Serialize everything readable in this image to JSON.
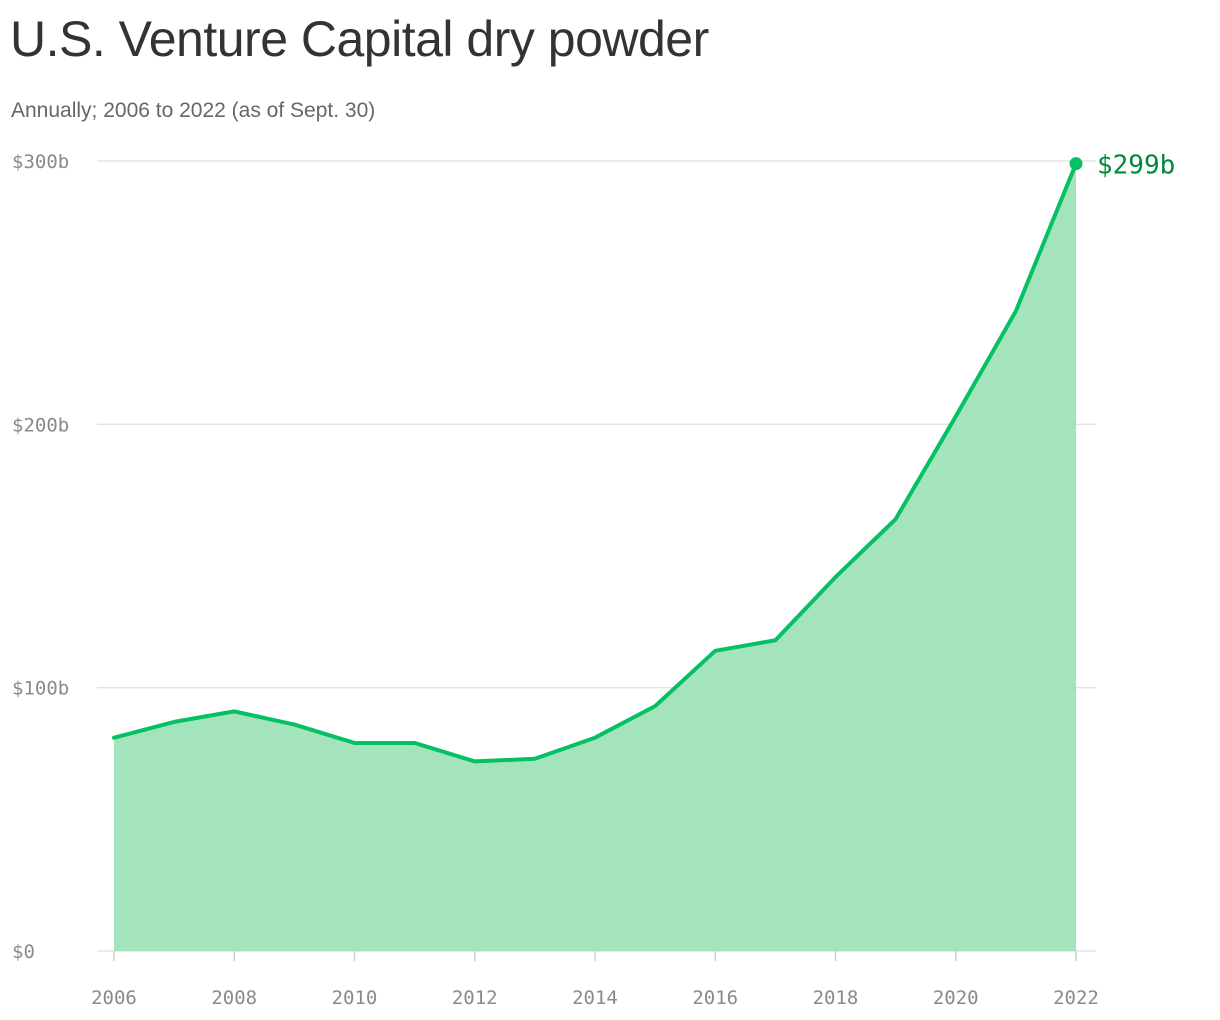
{
  "header": {
    "title": "U.S. Venture Capital dry powder",
    "subtitle": "Annually; 2006 to 2022 (as of Sept. 30)"
  },
  "colors": {
    "line": "#06c163",
    "area": "#a4e4bc",
    "end_label": "#00893d",
    "grid": "#e3e3e3",
    "tick_text": "#8a8a8a"
  },
  "chart_data": {
    "type": "area",
    "title": "U.S. Venture Capital dry powder",
    "subtitle": "Annually; 2006 to 2022 (as of Sept. 30)",
    "x": [
      2006,
      2007,
      2008,
      2009,
      2010,
      2011,
      2012,
      2013,
      2014,
      2015,
      2016,
      2017,
      2018,
      2019,
      2020,
      2021,
      2022
    ],
    "series": [
      {
        "values": [
          81,
          87,
          91,
          86,
          79,
          79,
          72,
          73,
          81,
          93,
          114,
          118,
          142,
          164,
          203,
          243,
          299
        ]
      }
    ],
    "xlim": [
      2006,
      2022
    ],
    "ylim": [
      0,
      300
    ],
    "x_ticks": [
      2006,
      2008,
      2010,
      2012,
      2014,
      2016,
      2018,
      2020,
      2022
    ],
    "x_tick_labels": [
      "2006",
      "2008",
      "2010",
      "2012",
      "2014",
      "2016",
      "2018",
      "2020",
      "2022"
    ],
    "y_ticks": [
      0,
      100,
      200,
      300
    ],
    "y_tick_labels": [
      "$0",
      "$100b",
      "$200b",
      "$300b"
    ],
    "end_label": "$299b",
    "grid": "horizontal",
    "legend": "none"
  }
}
